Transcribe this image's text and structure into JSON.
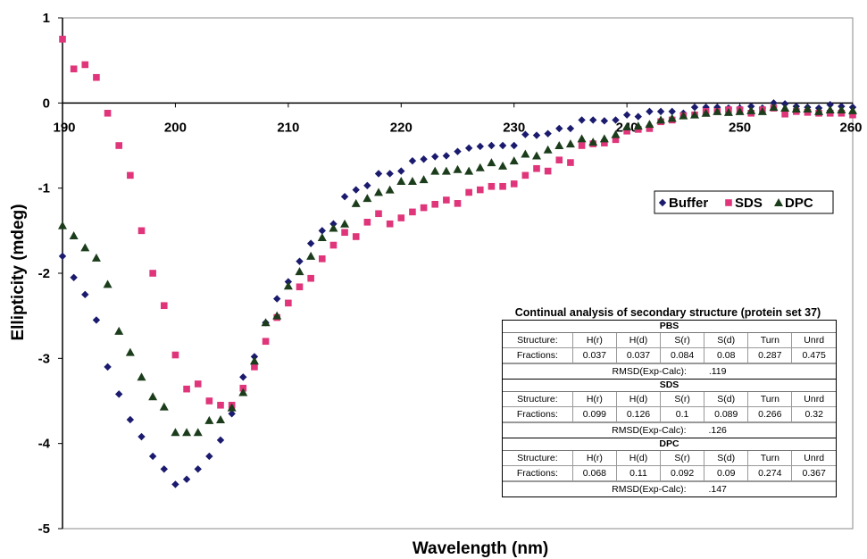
{
  "chart_data": {
    "type": "scatter",
    "title": "",
    "xlabel": "Wavelength (nm)",
    "ylabel": "Ellipticity (mdeg)",
    "xlim": [
      190,
      260
    ],
    "ylim": [
      -5,
      1
    ],
    "x_ticks": [
      "190",
      "200",
      "210",
      "220",
      "230",
      "240",
      "250",
      "260"
    ],
    "y_ticks": [
      "1",
      "0",
      "-1",
      "-2",
      "-3",
      "-4",
      "-5"
    ],
    "grid": false,
    "legend_position": "right",
    "series": [
      {
        "name": "Buffer",
        "marker": "diamond",
        "color": "#1a1a6e",
        "points": [
          [
            190,
            -1.8
          ],
          [
            191,
            -2.05
          ],
          [
            192,
            -2.25
          ],
          [
            193,
            -2.55
          ],
          [
            194,
            -3.1
          ],
          [
            195,
            -3.42
          ],
          [
            196,
            -3.72
          ],
          [
            197,
            -3.92
          ],
          [
            198,
            -4.15
          ],
          [
            199,
            -4.3
          ],
          [
            200,
            -4.48
          ],
          [
            201,
            -4.42
          ],
          [
            202,
            -4.3
          ],
          [
            203,
            -4.15
          ],
          [
            204,
            -3.96
          ],
          [
            205,
            -3.65
          ],
          [
            206,
            -3.22
          ],
          [
            207,
            -2.98
          ],
          [
            208,
            -2.58
          ],
          [
            209,
            -2.3
          ],
          [
            210,
            -2.1
          ],
          [
            211,
            -1.86
          ],
          [
            212,
            -1.65
          ],
          [
            213,
            -1.5
          ],
          [
            214,
            -1.42
          ],
          [
            215,
            -1.1
          ],
          [
            216,
            -1.02
          ],
          [
            217,
            -0.97
          ],
          [
            218,
            -0.83
          ],
          [
            219,
            -0.83
          ],
          [
            220,
            -0.8
          ],
          [
            221,
            -0.68
          ],
          [
            222,
            -0.66
          ],
          [
            223,
            -0.63
          ],
          [
            224,
            -0.62
          ],
          [
            225,
            -0.57
          ],
          [
            226,
            -0.53
          ],
          [
            227,
            -0.51
          ],
          [
            228,
            -0.5
          ],
          [
            229,
            -0.5
          ],
          [
            230,
            -0.5
          ],
          [
            231,
            -0.37
          ],
          [
            232,
            -0.38
          ],
          [
            233,
            -0.36
          ],
          [
            234,
            -0.3
          ],
          [
            235,
            -0.3
          ],
          [
            236,
            -0.2
          ],
          [
            237,
            -0.2
          ],
          [
            238,
            -0.21
          ],
          [
            239,
            -0.2
          ],
          [
            240,
            -0.14
          ],
          [
            241,
            -0.16
          ],
          [
            242,
            -0.1
          ],
          [
            243,
            -0.1
          ],
          [
            244,
            -0.1
          ],
          [
            245,
            -0.12
          ],
          [
            246,
            -0.05
          ],
          [
            247,
            -0.05
          ],
          [
            248,
            -0.05
          ],
          [
            249,
            -0.06
          ],
          [
            250,
            -0.06
          ],
          [
            251,
            -0.04
          ],
          [
            252,
            -0.06
          ],
          [
            253,
            0.0
          ],
          [
            254,
            -0.01
          ],
          [
            255,
            -0.04
          ],
          [
            256,
            -0.05
          ],
          [
            257,
            -0.06
          ],
          [
            258,
            -0.02
          ],
          [
            259,
            -0.04
          ],
          [
            260,
            -0.05
          ]
        ]
      },
      {
        "name": "SDS",
        "marker": "square",
        "color": "#e0357a",
        "points": [
          [
            190,
            0.75
          ],
          [
            191,
            0.4
          ],
          [
            192,
            0.45
          ],
          [
            193,
            0.3
          ],
          [
            194,
            -0.12
          ],
          [
            195,
            -0.5
          ],
          [
            196,
            -0.85
          ],
          [
            197,
            -1.5
          ],
          [
            198,
            -2.0
          ],
          [
            199,
            -2.38
          ],
          [
            200,
            -2.96
          ],
          [
            201,
            -3.36
          ],
          [
            202,
            -3.3
          ],
          [
            203,
            -3.5
          ],
          [
            204,
            -3.55
          ],
          [
            205,
            -3.55
          ],
          [
            206,
            -3.35
          ],
          [
            207,
            -3.1
          ],
          [
            208,
            -2.8
          ],
          [
            209,
            -2.52
          ],
          [
            210,
            -2.35
          ],
          [
            211,
            -2.16
          ],
          [
            212,
            -2.06
          ],
          [
            213,
            -1.83
          ],
          [
            214,
            -1.67
          ],
          [
            215,
            -1.52
          ],
          [
            216,
            -1.57
          ],
          [
            217,
            -1.4
          ],
          [
            218,
            -1.3
          ],
          [
            219,
            -1.42
          ],
          [
            220,
            -1.35
          ],
          [
            221,
            -1.28
          ],
          [
            222,
            -1.23
          ],
          [
            223,
            -1.19
          ],
          [
            224,
            -1.14
          ],
          [
            225,
            -1.18
          ],
          [
            226,
            -1.05
          ],
          [
            227,
            -1.02
          ],
          [
            228,
            -0.98
          ],
          [
            229,
            -0.98
          ],
          [
            230,
            -0.95
          ],
          [
            231,
            -0.85
          ],
          [
            232,
            -0.77
          ],
          [
            233,
            -0.8
          ],
          [
            234,
            -0.67
          ],
          [
            235,
            -0.7
          ],
          [
            236,
            -0.5
          ],
          [
            237,
            -0.48
          ],
          [
            238,
            -0.47
          ],
          [
            239,
            -0.43
          ],
          [
            240,
            -0.33
          ],
          [
            241,
            -0.31
          ],
          [
            242,
            -0.3
          ],
          [
            243,
            -0.22
          ],
          [
            244,
            -0.2
          ],
          [
            245,
            -0.15
          ],
          [
            246,
            -0.14
          ],
          [
            247,
            -0.1
          ],
          [
            248,
            -0.1
          ],
          [
            249,
            -0.08
          ],
          [
            250,
            -0.08
          ],
          [
            251,
            -0.12
          ],
          [
            252,
            -0.08
          ],
          [
            253,
            -0.06
          ],
          [
            254,
            -0.13
          ],
          [
            255,
            -0.1
          ],
          [
            256,
            -0.11
          ],
          [
            257,
            -0.12
          ],
          [
            258,
            -0.12
          ],
          [
            259,
            -0.12
          ],
          [
            260,
            -0.14
          ]
        ]
      },
      {
        "name": "DPC",
        "marker": "triangle",
        "color": "#1c3d1c",
        "points": [
          [
            190,
            -1.44
          ],
          [
            191,
            -1.56
          ],
          [
            192,
            -1.7
          ],
          [
            193,
            -1.82
          ],
          [
            194,
            -2.13
          ],
          [
            195,
            -2.68
          ],
          [
            196,
            -2.93
          ],
          [
            197,
            -3.22
          ],
          [
            198,
            -3.45
          ],
          [
            199,
            -3.57
          ],
          [
            200,
            -3.87
          ],
          [
            201,
            -3.87
          ],
          [
            202,
            -3.87
          ],
          [
            203,
            -3.73
          ],
          [
            204,
            -3.72
          ],
          [
            205,
            -3.58
          ],
          [
            206,
            -3.4
          ],
          [
            207,
            -3.03
          ],
          [
            208,
            -2.58
          ],
          [
            209,
            -2.5
          ],
          [
            210,
            -2.15
          ],
          [
            211,
            -1.98
          ],
          [
            212,
            -1.8
          ],
          [
            213,
            -1.58
          ],
          [
            214,
            -1.47
          ],
          [
            215,
            -1.42
          ],
          [
            216,
            -1.18
          ],
          [
            217,
            -1.12
          ],
          [
            218,
            -1.05
          ],
          [
            219,
            -1.02
          ],
          [
            220,
            -0.92
          ],
          [
            221,
            -0.92
          ],
          [
            222,
            -0.9
          ],
          [
            223,
            -0.8
          ],
          [
            224,
            -0.8
          ],
          [
            225,
            -0.78
          ],
          [
            226,
            -0.8
          ],
          [
            227,
            -0.76
          ],
          [
            228,
            -0.7
          ],
          [
            229,
            -0.74
          ],
          [
            230,
            -0.68
          ],
          [
            231,
            -0.6
          ],
          [
            232,
            -0.62
          ],
          [
            233,
            -0.55
          ],
          [
            234,
            -0.5
          ],
          [
            235,
            -0.48
          ],
          [
            236,
            -0.42
          ],
          [
            237,
            -0.46
          ],
          [
            238,
            -0.42
          ],
          [
            239,
            -0.37
          ],
          [
            240,
            -0.28
          ],
          [
            241,
            -0.27
          ],
          [
            242,
            -0.25
          ],
          [
            243,
            -0.2
          ],
          [
            244,
            -0.18
          ],
          [
            245,
            -0.15
          ],
          [
            246,
            -0.14
          ],
          [
            247,
            -0.12
          ],
          [
            248,
            -0.1
          ],
          [
            249,
            -0.11
          ],
          [
            250,
            -0.1
          ],
          [
            251,
            -0.09
          ],
          [
            252,
            -0.1
          ],
          [
            253,
            -0.05
          ],
          [
            254,
            -0.06
          ],
          [
            255,
            -0.07
          ],
          [
            256,
            -0.07
          ],
          [
            257,
            -0.1
          ],
          [
            258,
            -0.08
          ],
          [
            259,
            -0.08
          ],
          [
            260,
            -0.09
          ]
        ]
      }
    ]
  },
  "inset": {
    "title": "Continual analysis of secondary structure (protein set 37)",
    "sections": [
      {
        "name": "PBS",
        "header": [
          "Structure:",
          "H(r)",
          "H(d)",
          "S(r)",
          "S(d)",
          "Turn",
          "Unrd"
        ],
        "fractions": [
          "Fractions:",
          "0.037",
          "0.037",
          "0.084",
          "0.08",
          "0.287",
          "0.475"
        ],
        "rmsd_label": "RMSD(Exp-Calc):",
        "rmsd_value": ".119"
      },
      {
        "name": "SDS",
        "header": [
          "Structure:",
          "H(r)",
          "H(d)",
          "S(r)",
          "S(d)",
          "Turn",
          "Unrd"
        ],
        "fractions": [
          "Fractions:",
          "0.099",
          "0.126",
          "0.1",
          "0.089",
          "0.266",
          "0.32"
        ],
        "rmsd_label": "RMSD(Exp-Calc):",
        "rmsd_value": ".126"
      },
      {
        "name": "DPC",
        "header": [
          "Structure:",
          "H(r)",
          "H(d)",
          "S(r)",
          "S(d)",
          "Turn",
          "Unrd"
        ],
        "fractions": [
          "Fractions:",
          "0.068",
          "0.11",
          "0.092",
          "0.09",
          "0.274",
          "0.367"
        ],
        "rmsd_label": "RMSD(Exp-Calc):",
        "rmsd_value": ".147"
      }
    ]
  }
}
